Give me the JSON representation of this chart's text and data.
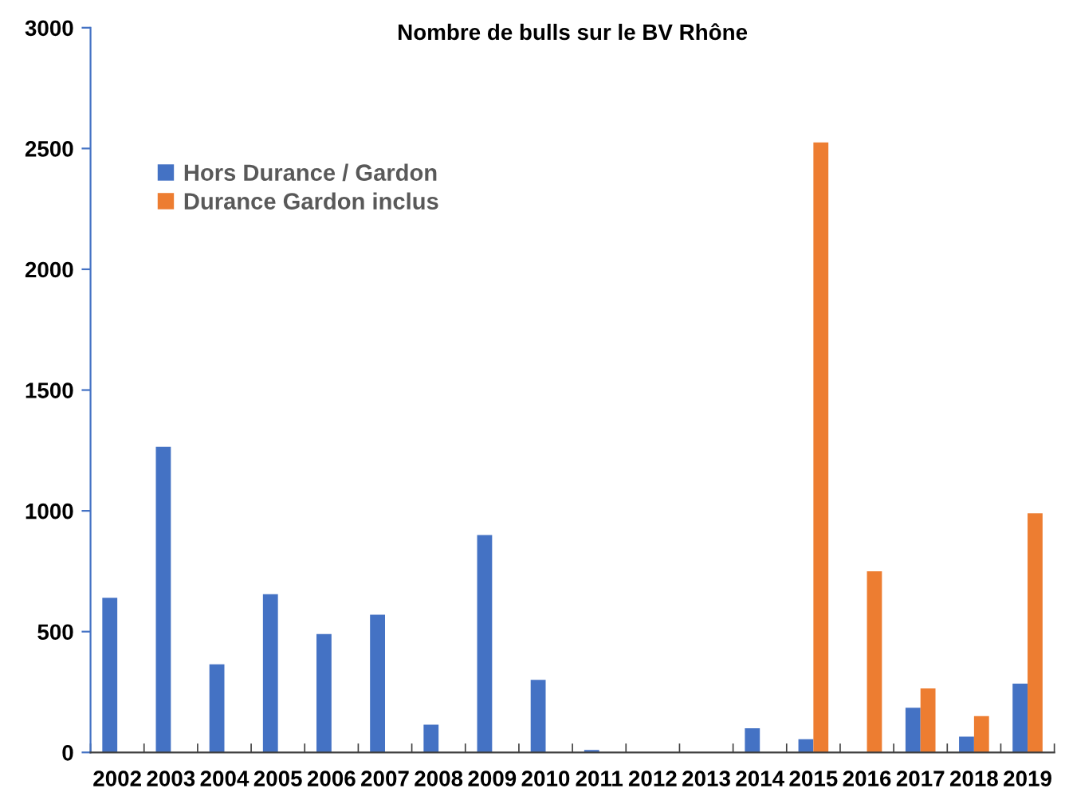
{
  "chart_data": {
    "type": "bar",
    "title": "Nombre de bulls sur le BV Rhône",
    "categories": [
      "2002",
      "2003",
      "2004",
      "2005",
      "2006",
      "2007",
      "2008",
      "2009",
      "2010",
      "2011",
      "2012",
      "2013",
      "2014",
      "2015",
      "2016",
      "2017",
      "2018",
      "2019"
    ],
    "series": [
      {
        "name": "Hors Durance / Gardon",
        "color": "#4472c4",
        "values": [
          640,
          1265,
          365,
          655,
          490,
          570,
          115,
          900,
          300,
          10,
          0,
          0,
          100,
          55,
          0,
          185,
          65,
          285
        ]
      },
      {
        "name": "Durance Gardon inclus",
        "color": "#ed7d31",
        "values": [
          null,
          null,
          null,
          null,
          null,
          null,
          null,
          null,
          null,
          null,
          null,
          null,
          null,
          2525,
          750,
          265,
          150,
          990
        ]
      }
    ],
    "ylim": [
      0,
      3000
    ],
    "yticks": [
      0,
      500,
      1000,
      1500,
      2000,
      2500,
      3000
    ],
    "grid": false,
    "legend": "top left"
  }
}
